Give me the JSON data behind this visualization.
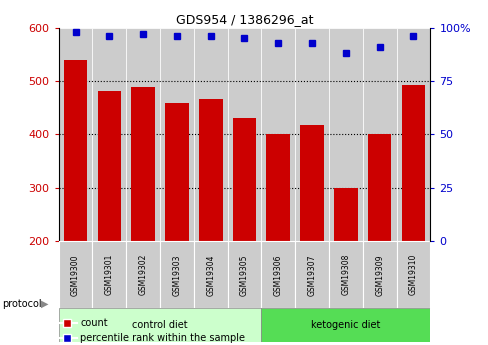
{
  "title": "GDS954 / 1386296_at",
  "samples": [
    "GSM19300",
    "GSM19301",
    "GSM19302",
    "GSM19303",
    "GSM19304",
    "GSM19305",
    "GSM19306",
    "GSM19307",
    "GSM19308",
    "GSM19309",
    "GSM19310"
  ],
  "counts": [
    540,
    482,
    488,
    458,
    466,
    430,
    400,
    418,
    300,
    400,
    493
  ],
  "percentiles": [
    98,
    96,
    97,
    96,
    96,
    95,
    93,
    93,
    88,
    91,
    96
  ],
  "bar_color": "#cc0000",
  "dot_color": "#0000cc",
  "ylim_left": [
    200,
    600
  ],
  "ylim_right": [
    0,
    100
  ],
  "yticks_left": [
    200,
    300,
    400,
    500,
    600
  ],
  "yticks_right": [
    0,
    25,
    50,
    75,
    100
  ],
  "grid_ticks": [
    300,
    400,
    500
  ],
  "control_diet_indices": [
    0,
    1,
    2,
    3,
    4,
    5
  ],
  "ketogenic_diet_indices": [
    6,
    7,
    8,
    9,
    10
  ],
  "control_label": "control diet",
  "ketogenic_label": "ketogenic diet",
  "protocol_label": "protocol",
  "legend_count": "count",
  "legend_percentile": "percentile rank within the sample",
  "control_bg": "#ccffcc",
  "ketogenic_bg": "#55dd55",
  "bar_bg": "#cccccc",
  "bar_width": 0.7,
  "figsize": [
    4.89,
    3.45
  ],
  "dpi": 100
}
